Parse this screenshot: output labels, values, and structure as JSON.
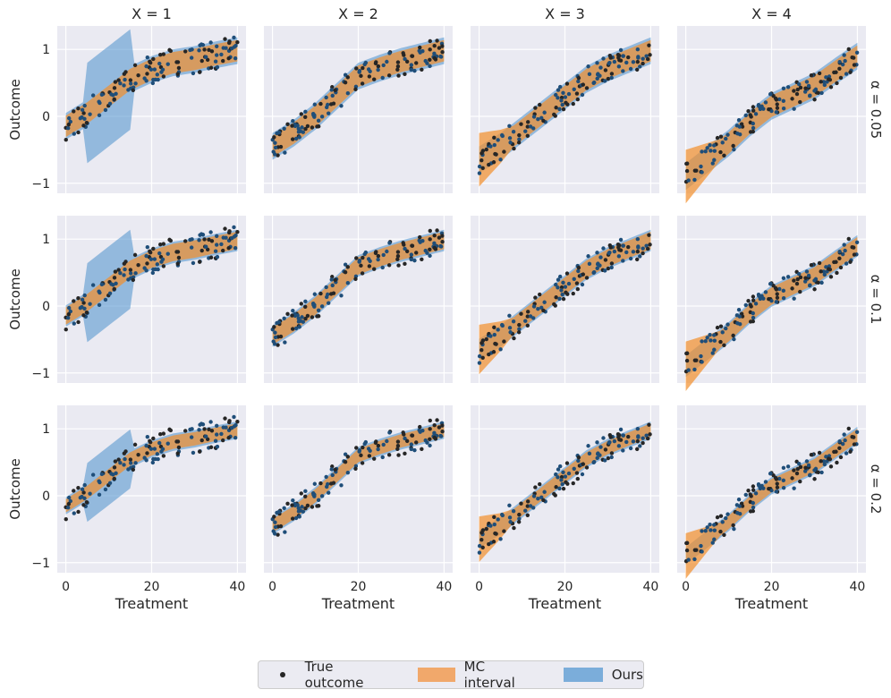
{
  "figure": {
    "column_titles": [
      "X = 1",
      "X = 2",
      "X = 3",
      "X = 4"
    ],
    "row_labels": [
      "α = 0.05",
      "α = 0.1",
      "α = 0.2"
    ],
    "ylabel": "Outcome",
    "xlabel": "Treatment",
    "x_ticks": [
      "0",
      "20",
      "40"
    ],
    "y_ticks": [
      "1",
      "0",
      "−1"
    ]
  },
  "legend": {
    "true_outcome": "True outcome",
    "mc_interval": "MC interval",
    "ours": "Ours"
  },
  "colors": {
    "axes_bg": "#eaeaf2",
    "grid": "#ffffff",
    "points": "#262626",
    "points_blue": "#1f4e79",
    "mc_interval": "#f28e2b",
    "ours": "#4a90cc"
  },
  "chart_data": {
    "type": "scatter",
    "layout": "3x4 facet grid",
    "xlim": [
      -2,
      42
    ],
    "ylim": [
      -1.15,
      1.35
    ],
    "x_ticks": [
      0,
      20,
      40
    ],
    "y_ticks": [
      -1,
      0,
      1
    ],
    "grid": true,
    "legend_placement": "bottom-center",
    "series": [
      {
        "name": "True outcome",
        "kind": "points"
      },
      {
        "name": "MC interval",
        "kind": "band"
      },
      {
        "name": "Ours",
        "kind": "band"
      }
    ],
    "columns": [
      {
        "title": "X = 1",
        "curve_x": [
          0,
          5,
          10,
          15,
          20,
          25,
          30,
          35,
          40
        ],
        "curve_y": [
          -0.15,
          0.05,
          0.3,
          0.55,
          0.7,
          0.8,
          0.85,
          0.92,
          0.98
        ]
      },
      {
        "title": "X = 2",
        "curve_x": [
          0,
          5,
          10,
          15,
          20,
          25,
          30,
          35,
          40
        ],
        "curve_y": [
          -0.45,
          -0.25,
          0.0,
          0.3,
          0.6,
          0.72,
          0.82,
          0.9,
          0.98
        ]
      },
      {
        "title": "X = 3",
        "curve_x": [
          0,
          5,
          10,
          15,
          20,
          25,
          30,
          35,
          40
        ],
        "curve_y": [
          -0.65,
          -0.45,
          -0.2,
          0.05,
          0.3,
          0.55,
          0.72,
          0.85,
          0.98
        ]
      },
      {
        "title": "X = 4",
        "curve_x": [
          0,
          5,
          10,
          15,
          20,
          25,
          30,
          35,
          40
        ],
        "curve_y": [
          -0.9,
          -0.65,
          -0.4,
          -0.1,
          0.15,
          0.3,
          0.45,
          0.68,
          0.9
        ]
      }
    ],
    "rows": [
      {
        "label": "α = 0.05",
        "mc_halfwidth": 0.16,
        "ours_halfwidth": 0.2
      },
      {
        "label": "α = 0.1",
        "mc_halfwidth": 0.13,
        "ours_halfwidth": 0.16
      },
      {
        "label": "α = 0.2",
        "mc_halfwidth": 0.1,
        "ours_halfwidth": 0.13
      }
    ]
  }
}
